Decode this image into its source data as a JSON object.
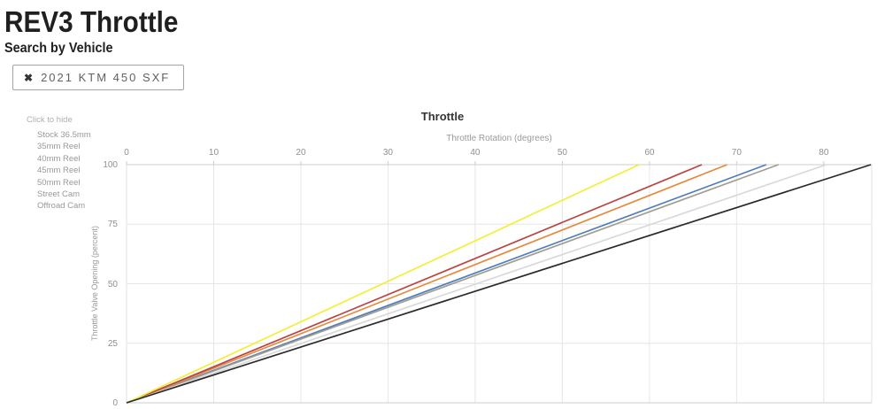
{
  "page": {
    "title": "REV3 Throttle",
    "subtitle": "Search by Vehicle"
  },
  "vehicle_tag": {
    "remove_icon": "✖",
    "label": "2021 KTM 450 SXF"
  },
  "legend": {
    "hint": "Click to hide",
    "items": [
      "Stock 36.5mm",
      "35mm Reel",
      "40mm Reel",
      "45mm Reel",
      "50mm Reel",
      "Street Cam",
      "Offroad Cam"
    ]
  },
  "chart_data": {
    "type": "line",
    "title": "Throttle",
    "xlabel": "Throttle Rotation (degrees)",
    "ylabel": "Throttle Valve Opening (percent)",
    "xlim": [
      0,
      85.5
    ],
    "ylim": [
      0,
      100
    ],
    "x_ticks": [
      0,
      10,
      20,
      30,
      40,
      50,
      60,
      70,
      80
    ],
    "y_ticks": [
      0,
      25,
      50,
      75,
      100
    ],
    "grid": true,
    "legend_position": "left",
    "series": [
      {
        "name": "Stock 36.5mm",
        "color": "#4d7ebf",
        "points": [
          [
            0,
            0
          ],
          [
            73.4,
            100
          ]
        ]
      },
      {
        "name": "35mm Reel",
        "color": "#a49d92",
        "points": [
          [
            0,
            0
          ],
          [
            74.8,
            100
          ]
        ]
      },
      {
        "name": "40mm Reel",
        "color": "#e68a3e",
        "points": [
          [
            0,
            0
          ],
          [
            68.9,
            100
          ]
        ]
      },
      {
        "name": "45mm Reel",
        "color": "#b94441",
        "points": [
          [
            0,
            0
          ],
          [
            66.0,
            100
          ]
        ]
      },
      {
        "name": "50mm Reel",
        "color": "#f3ef35",
        "points": [
          [
            0,
            0
          ],
          [
            58.8,
            100
          ]
        ]
      },
      {
        "name": "Street Cam",
        "color": "#d9d9d9",
        "points": [
          [
            0,
            0
          ],
          [
            80.3,
            100
          ]
        ]
      },
      {
        "name": "Offroad Cam",
        "color": "#2b2b2b",
        "points": [
          [
            0,
            0
          ],
          [
            85.4,
            100
          ]
        ]
      }
    ],
    "colors": {
      "grid": "#e6e6e6",
      "axis_border": "#cccccc",
      "side_border": "#e2e2e2"
    }
  }
}
